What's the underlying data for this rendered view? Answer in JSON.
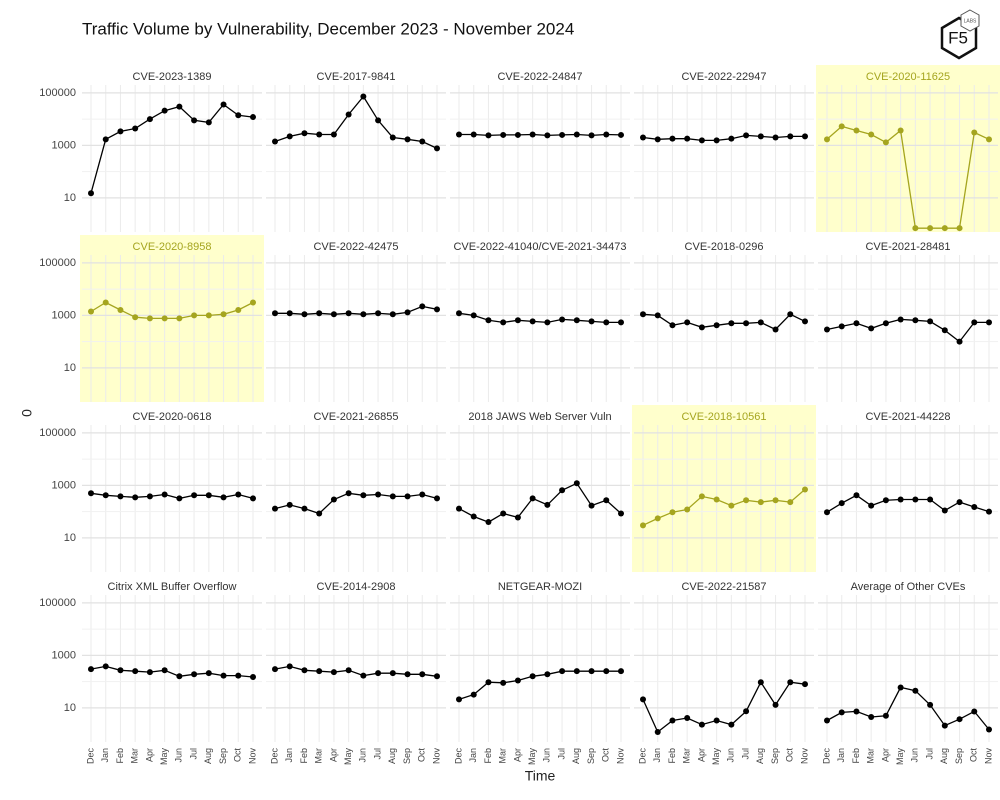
{
  "chart_data": {
    "type": "line",
    "title": "Traffic Volume by Vulnerability, December 2023 - November 2024",
    "x_label": "Time",
    "y_label": "0",
    "logo": {
      "text": "F5",
      "subtext": "LABS"
    },
    "categories": [
      "Dec",
      "Jan",
      "Feb",
      "Mar",
      "Apr",
      "May",
      "Jun",
      "Jul",
      "Aug",
      "Sep",
      "Oct",
      "Nov"
    ],
    "log_scale": true,
    "grid": true,
    "ylim": [
      0.5,
      200000
    ],
    "yticks": [
      10,
      1000,
      100000
    ],
    "color": "#000000",
    "highlight_color": "#a5a51f",
    "highlight_fill": "#ffffcc",
    "panels": [
      {
        "title": "CVE-2023-1389",
        "highlighted": false,
        "values": [
          15,
          1700,
          3400,
          4400,
          10000,
          21000,
          30000,
          9000,
          7500,
          36000,
          14000,
          12000
        ]
      },
      {
        "title": "CVE-2017-9841",
        "highlighted": false,
        "values": [
          1400,
          2200,
          2900,
          2600,
          2600,
          15000,
          73000,
          9000,
          2000,
          1700,
          1400,
          770
        ]
      },
      {
        "title": "CVE-2022-24847",
        "highlighted": false,
        "values": [
          2600,
          2600,
          2400,
          2500,
          2500,
          2600,
          2400,
          2500,
          2600,
          2400,
          2600,
          2500
        ]
      },
      {
        "title": "CVE-2022-22947",
        "highlighted": false,
        "values": [
          2000,
          1700,
          1800,
          1800,
          1550,
          1550,
          1800,
          2400,
          2200,
          2000,
          2200,
          2200
        ]
      },
      {
        "title": "CVE-2020-11625",
        "highlighted": true,
        "values": [
          1700,
          5300,
          3700,
          2600,
          1300,
          3700,
          0.7,
          0.7,
          0.7,
          0.7,
          3100,
          1700
        ]
      },
      {
        "title": "CVE-2020-8958",
        "highlighted": true,
        "values": [
          1400,
          3100,
          1600,
          850,
          770,
          770,
          770,
          1000,
          1000,
          1100,
          1600,
          3100
        ]
      },
      {
        "title": "CVE-2022-42475",
        "highlighted": false,
        "values": [
          1200,
          1200,
          1100,
          1200,
          1100,
          1200,
          1100,
          1200,
          1100,
          1300,
          2200,
          1700
        ]
      },
      {
        "title": "CVE-2022-41040/CVE-2021-34473",
        "highlighted": false,
        "values": [
          1200,
          1000,
          650,
          540,
          650,
          590,
          540,
          700,
          650,
          590,
          540,
          540
        ]
      },
      {
        "title": "CVE-2018-0296",
        "highlighted": false,
        "values": [
          1100,
          1000,
          420,
          540,
          350,
          420,
          500,
          500,
          540,
          290,
          1100,
          590
        ]
      },
      {
        "title": "CVE-2021-28481",
        "highlighted": false,
        "values": [
          290,
          380,
          500,
          320,
          500,
          700,
          650,
          590,
          270,
          100,
          540,
          540
        ]
      },
      {
        "title": "CVE-2020-0618",
        "highlighted": false,
        "values": [
          500,
          420,
          380,
          350,
          380,
          450,
          320,
          420,
          420,
          350,
          450,
          320
        ]
      },
      {
        "title": "CVE-2021-26855",
        "highlighted": false,
        "values": [
          130,
          180,
          130,
          85,
          290,
          500,
          420,
          450,
          380,
          380,
          450,
          320
        ]
      },
      {
        "title": "2018 JAWS Web Server Vuln",
        "highlighted": false,
        "values": [
          130,
          65,
          40,
          85,
          60,
          320,
          180,
          650,
          1200,
          170,
          270,
          85
        ]
      },
      {
        "title": "CVE-2018-10561",
        "highlighted": true,
        "values": [
          30,
          55,
          95,
          120,
          380,
          290,
          170,
          270,
          230,
          270,
          230,
          700
        ]
      },
      {
        "title": "CVE-2021-44228",
        "highlighted": false,
        "values": [
          95,
          210,
          420,
          170,
          270,
          290,
          290,
          290,
          110,
          230,
          150,
          100
        ]
      },
      {
        "title": "Citrix XML Buffer Overflow",
        "highlighted": false,
        "values": [
          300,
          380,
          270,
          250,
          230,
          270,
          160,
          190,
          210,
          170,
          170,
          150
        ]
      },
      {
        "title": "CVE-2014-2908",
        "highlighted": false,
        "values": [
          300,
          380,
          270,
          250,
          230,
          270,
          170,
          210,
          210,
          190,
          190,
          160
        ]
      },
      {
        "title": "NETGEAR-MOZI",
        "highlighted": false,
        "values": [
          21,
          32,
          95,
          90,
          110,
          160,
          190,
          250,
          250,
          250,
          250,
          250
        ]
      },
      {
        "title": "CVE-2022-21587",
        "highlighted": false,
        "values": [
          21,
          1.2,
          3.3,
          4.1,
          2.3,
          3.3,
          2.3,
          7.4,
          95,
          13,
          95,
          80
        ]
      },
      {
        "title": "Average of Other CVEs",
        "highlighted": false,
        "values": [
          3.3,
          6.7,
          7.3,
          4.5,
          5,
          60,
          45,
          13,
          2.1,
          3.7,
          7.3,
          1.5
        ]
      }
    ]
  }
}
